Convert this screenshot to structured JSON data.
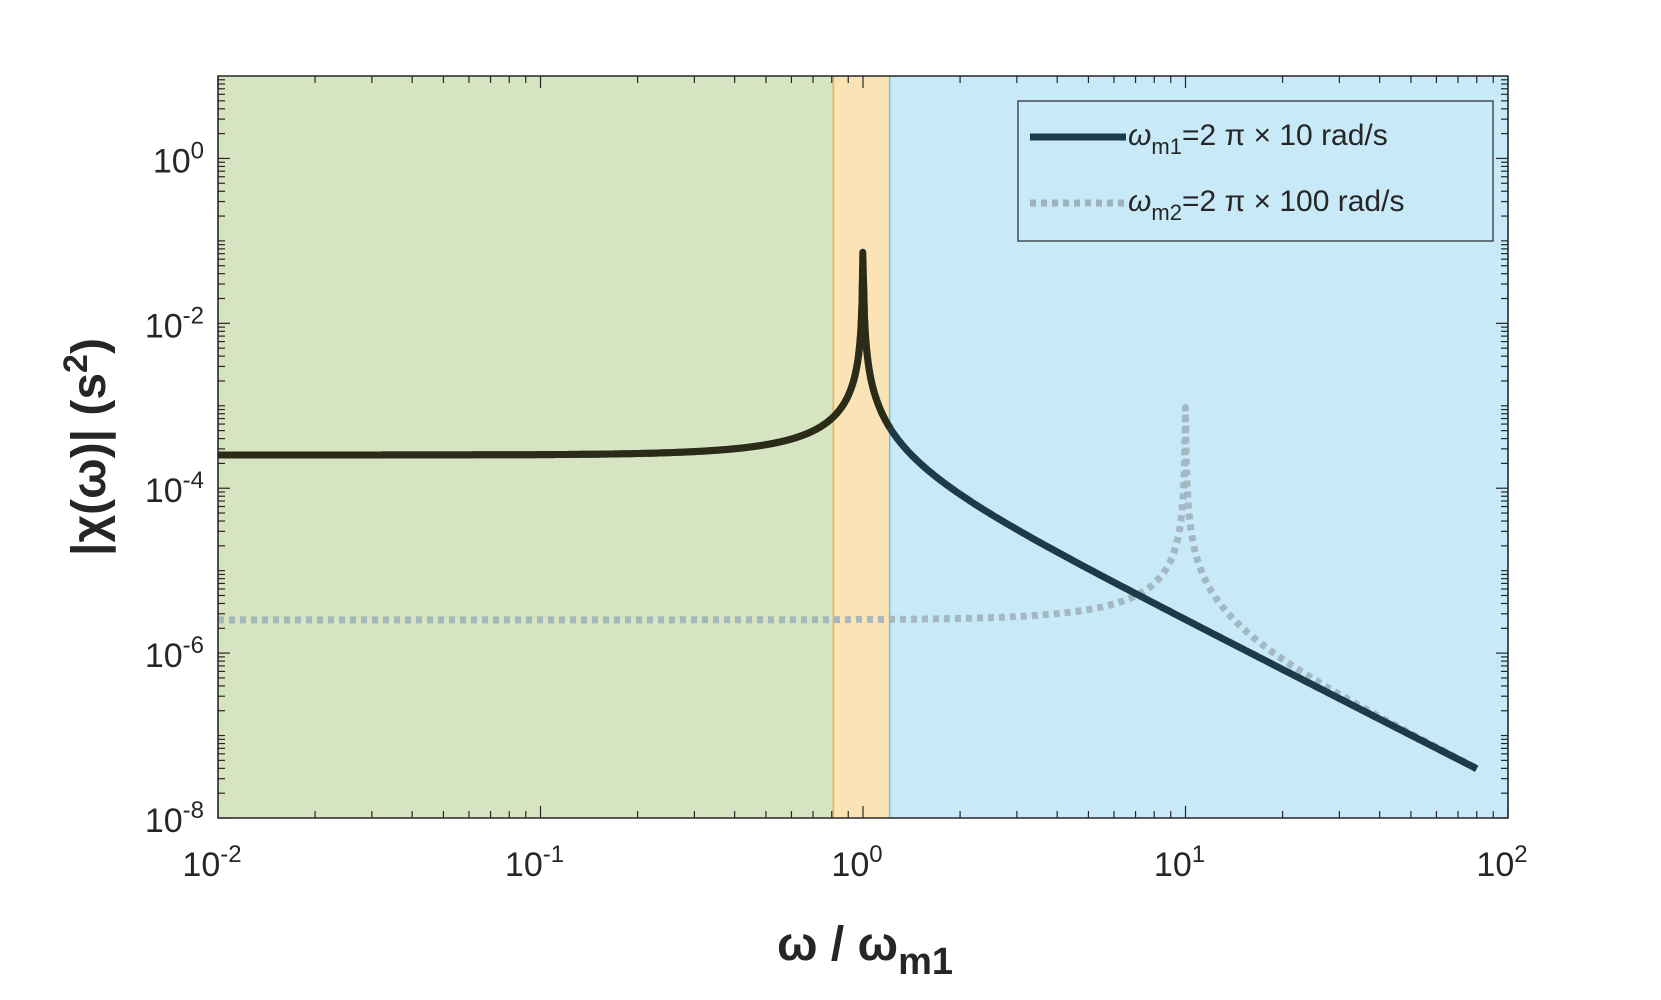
{
  "chart_data": {
    "type": "line",
    "x_scale": "log",
    "y_scale": "log",
    "xlim": [
      0.01,
      100
    ],
    "ylim": [
      1e-08,
      10
    ],
    "x_ticks": [
      0.01,
      0.1,
      1,
      10,
      100
    ],
    "x_tick_labels": [
      {
        "base": "10",
        "exp": "-2"
      },
      {
        "base": "10",
        "exp": "-1"
      },
      {
        "base": "10",
        "exp": "0"
      },
      {
        "base": "10",
        "exp": "1"
      },
      {
        "base": "10",
        "exp": "2"
      }
    ],
    "y_ticks": [
      1e-08,
      1e-06,
      0.0001,
      0.01,
      1
    ],
    "y_tick_labels": [
      {
        "base": "10",
        "exp": "-8"
      },
      {
        "base": "10",
        "exp": "-6"
      },
      {
        "base": "10",
        "exp": "-4"
      },
      {
        "base": "10",
        "exp": "-2"
      },
      {
        "base": "10",
        "exp": "0"
      }
    ],
    "xlabel": {
      "main": "ω / ω",
      "sub": "m1"
    },
    "ylabel": {
      "main": "|χ(ω)| (s",
      "sup": "2",
      "tail": ")"
    },
    "grid": false,
    "legend_position": "top-right",
    "regions": [
      {
        "x_start": 0.01,
        "x_end": 0.81,
        "color": "#d6e4c1",
        "edge": "#8fc070"
      },
      {
        "x_start": 0.81,
        "x_end": 1.21,
        "color": "#fbe3b6",
        "edge": "#f0b44a"
      },
      {
        "x_start": 1.21,
        "x_end": 100,
        "color": "#c8e9f8",
        "edge": "#6cc3ea"
      }
    ],
    "series": [
      {
        "name": "ω_m1=2 π × 10 rad/s",
        "legend": {
          "omega": "ω",
          "sub": "m1",
          "rest": "=2 π × 10 rad/s"
        },
        "style": "solid",
        "color": "#1d3a4b",
        "omega_m": 1,
        "static_value": 0.000253,
        "peak": 0.1,
        "x_range": [
          0.01,
          80
        ],
        "samples": [
          [
            0.01,
            0.000253
          ],
          [
            0.1,
            0.000256
          ],
          [
            0.5,
            0.000338
          ],
          [
            1.0,
            0.1
          ],
          [
            2.0,
            8.44e-05
          ],
          [
            10,
            2.56e-06
          ],
          [
            80,
            3.96e-08
          ]
        ]
      },
      {
        "name": "ω_m2=2 π × 100 rad/s",
        "legend": {
          "omega": "ω",
          "sub": "m2",
          "rest": "=2 π × 100 rad/s"
        },
        "style": "dotted",
        "color": "#9fb2bb",
        "omega_m": 10,
        "static_value": 2.53e-06,
        "peak": 0.002,
        "x_range": [
          0.01,
          80
        ],
        "samples": [
          [
            0.01,
            2.53e-06
          ],
          [
            1,
            2.56e-06
          ],
          [
            5,
            3.38e-06
          ],
          [
            10,
            0.002
          ],
          [
            20,
            8.44e-07
          ],
          [
            80,
            4.02e-08
          ]
        ]
      }
    ]
  }
}
